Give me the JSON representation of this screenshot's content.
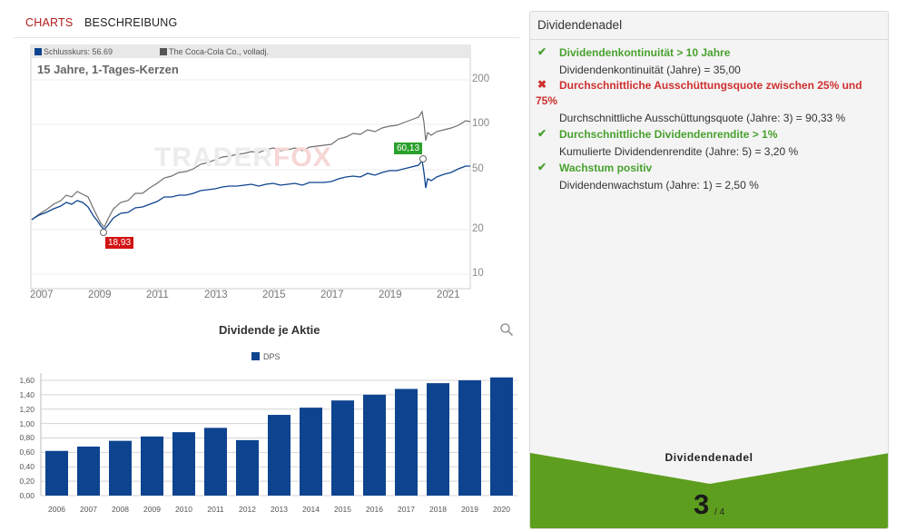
{
  "tabs": [
    {
      "label": "CHARTS",
      "active": true
    },
    {
      "label": "BESCHREIBUNG",
      "active": false
    }
  ],
  "price_chart": {
    "legend": [
      {
        "label": "Schlusskurs: 56.69",
        "color": "#0e448f"
      },
      {
        "label": "The Coca-Cola Co., volladj.",
        "color": "#555555"
      }
    ],
    "title": "15 Jahre, 1-Tages-Kerzen",
    "watermark": {
      "left": "TRADER",
      "right": "FOX"
    },
    "y_ticks": [
      "200",
      "100",
      "50",
      "20",
      "10"
    ],
    "x_ticks": [
      "2007",
      "2009",
      "2011",
      "2013",
      "2015",
      "2017",
      "2019",
      "2021"
    ],
    "low_badge": "18,93",
    "high_badge": "60,13"
  },
  "chart_data": {
    "type": "bar",
    "title": "Dividende je Aktie",
    "legend": [
      "DPS"
    ],
    "categories": [
      "2006",
      "2007",
      "2008",
      "2009",
      "2010",
      "2011",
      "2012",
      "2013",
      "2014",
      "2015",
      "2016",
      "2017",
      "2018",
      "2019",
      "2020"
    ],
    "series": [
      {
        "name": "DPS",
        "color": "#0e448f",
        "values": [
          0.62,
          0.68,
          0.76,
          0.82,
          0.88,
          0.94,
          0.77,
          1.12,
          1.22,
          1.32,
          1.4,
          1.48,
          1.56,
          1.6,
          1.64
        ]
      }
    ],
    "y_ticks": [
      "0,00",
      "0,20",
      "0,40",
      "0,60",
      "0,80",
      "1,00",
      "1,20",
      "1,40",
      "1,60"
    ],
    "ylim": [
      0,
      1.7
    ],
    "grid": true
  },
  "panel": {
    "title": "Dividendenadel",
    "criteria": [
      {
        "icon": "✔",
        "status": "ok",
        "heading": "Dividendenkontinuität > 10 Jahre",
        "detail": "Dividendenkontinuität (Jahre) = 35,00"
      },
      {
        "icon": "✖",
        "status": "bad",
        "heading": "Durchschnittliche Ausschüttungsquote zwischen 25% und 75%",
        "detail": "Durchschnittliche Ausschüttungsquote (Jahre: 3) = 90,33 %"
      },
      {
        "icon": "✔",
        "status": "ok",
        "heading": "Durchschnittliche Dividendenrendite > 1%",
        "detail": "Kumulierte Dividendenrendite (Jahre: 5) = 3,20 %"
      },
      {
        "icon": "✔",
        "status": "ok",
        "heading": "Wachstum positiv",
        "detail": "Dividendenwachstum (Jahre: 1) = 2,50 %"
      }
    ],
    "bottom_label": "Dividendenadel",
    "score": "3",
    "score_of": "/ 4",
    "accent": "#5e9e1f"
  }
}
